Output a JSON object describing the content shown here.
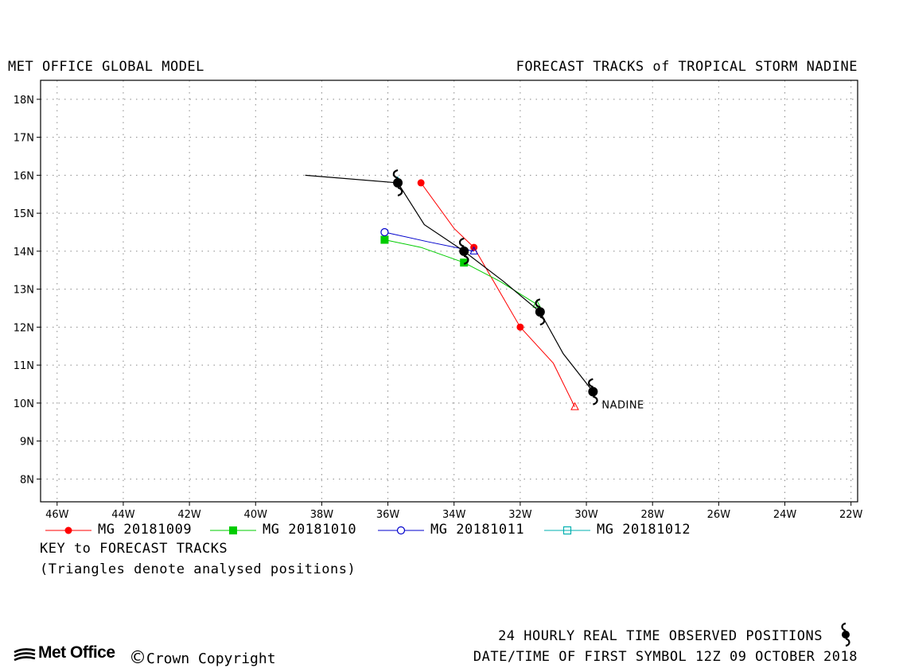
{
  "header": {
    "left_title": "MET OFFICE GLOBAL MODEL",
    "right_title": "FORECAST TRACKS of TROPICAL STORM NADINE"
  },
  "chart_data": {
    "type": "line",
    "xlim": [
      -46.5,
      -21.8
    ],
    "ylim": [
      7.4,
      18.5
    ],
    "x_ticks": [
      -46,
      -44,
      -42,
      -40,
      -38,
      -36,
      -34,
      -32,
      -30,
      -28,
      -26,
      -24,
      -22
    ],
    "x_tick_labels": [
      "46W",
      "44W",
      "42W",
      "40W",
      "38W",
      "36W",
      "34W",
      "32W",
      "30W",
      "28W",
      "26W",
      "24W",
      "22W"
    ],
    "y_ticks": [
      8,
      9,
      10,
      11,
      12,
      13,
      14,
      15,
      16,
      17,
      18
    ],
    "y_tick_labels": [
      "8N",
      "9N",
      "10N",
      "11N",
      "12N",
      "13N",
      "14N",
      "15N",
      "16N",
      "17N",
      "18N"
    ],
    "grid": true,
    "series": [
      {
        "name": "MG 20181009",
        "color": "#ff0000",
        "marker": "filled-circle",
        "analysed": {
          "x": -30.35,
          "y": 9.9
        },
        "points": [
          {
            "x": -30.35,
            "y": 9.9
          },
          {
            "x": -31.0,
            "y": 11.05
          },
          {
            "x": -32.0,
            "y": 12.0
          },
          {
            "x": -32.8,
            "y": 13.2
          },
          {
            "x": -33.4,
            "y": 14.1
          },
          {
            "x": -34.0,
            "y": 14.6
          },
          {
            "x": -35.0,
            "y": 15.8
          }
        ],
        "marked": [
          [
            -32.0,
            12.0
          ],
          [
            -33.4,
            14.1
          ],
          [
            -35.0,
            15.8
          ]
        ]
      },
      {
        "name": "MG 20181010",
        "color": "#00cc00",
        "marker": "filled-square",
        "analysed": {
          "x": -31.5,
          "y": 12.6
        },
        "points": [
          {
            "x": -31.5,
            "y": 12.6
          },
          {
            "x": -32.6,
            "y": 13.2
          },
          {
            "x": -33.7,
            "y": 13.7
          },
          {
            "x": -35.0,
            "y": 14.1
          },
          {
            "x": -36.1,
            "y": 14.3
          }
        ],
        "marked": [
          [
            -33.7,
            13.7
          ],
          [
            -36.1,
            14.3
          ]
        ]
      },
      {
        "name": "MG 20181011",
        "color": "#0000cc",
        "marker": "open-circle",
        "analysed": {
          "x": -33.4,
          "y": 14.0
        },
        "points": [
          {
            "x": -33.4,
            "y": 14.0
          },
          {
            "x": -34.8,
            "y": 14.25
          },
          {
            "x": -36.1,
            "y": 14.5
          }
        ],
        "marked": [
          [
            -36.1,
            14.5
          ]
        ]
      },
      {
        "name": "MG 20181012",
        "color": "#00b0b0",
        "marker": "open-square",
        "analysed": {
          "x": -35.7,
          "y": 15.85
        },
        "points": [
          {
            "x": -35.7,
            "y": 15.85
          }
        ],
        "marked": []
      }
    ],
    "observed": {
      "name": "NADINE",
      "color": "#000000",
      "points": [
        {
          "x": -29.8,
          "y": 10.3
        },
        {
          "x": -30.7,
          "y": 11.3
        },
        {
          "x": -31.4,
          "y": 12.4
        },
        {
          "x": -32.5,
          "y": 13.2
        },
        {
          "x": -33.7,
          "y": 14.0
        },
        {
          "x": -34.9,
          "y": 14.7
        },
        {
          "x": -35.7,
          "y": 15.8
        },
        {
          "x": -38.5,
          "y": 16.0
        }
      ],
      "symbols": [
        [
          -29.8,
          10.3
        ],
        [
          -31.4,
          12.4
        ],
        [
          -33.7,
          14.0
        ],
        [
          -35.7,
          15.8
        ]
      ],
      "label": "NADINE"
    }
  },
  "legend": {
    "key_title": "KEY to FORECAST TRACKS",
    "key_note": "(Triangles denote analysed positions)"
  },
  "footer": {
    "observed_text": "24 HOURLY REAL TIME OBSERVED POSITIONS",
    "first_symbol_text": "DATE/TIME OF FIRST SYMBOL 12Z 09 OCTOBER 2018",
    "logo_text": "Met Office",
    "copyright_symbol": "©",
    "copyright_text": "Crown Copyright"
  }
}
